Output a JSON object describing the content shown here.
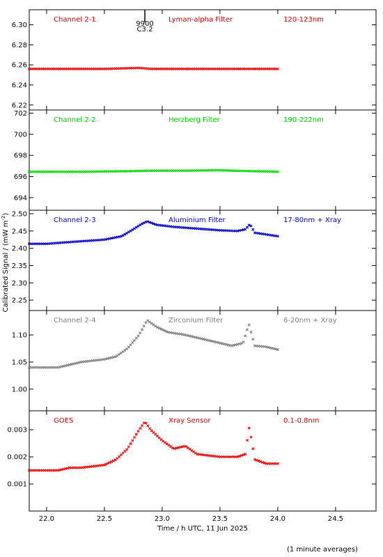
{
  "chart_data": {
    "type": "scatter",
    "xlabel": "Time / h UTC, 11 Jun 2025",
    "ylabel": "Calibrated Signal / (mW m",
    "ylabel_sup": "-2",
    "ylabel_close": ")",
    "footnote": "(1 minute averages)",
    "xlim": [
      21.85,
      24.85
    ],
    "xticks": [
      22.0,
      22.5,
      23.0,
      23.5,
      24.0,
      24.5
    ],
    "xtick_labels": [
      "22.0",
      "22.5",
      "23.0",
      "23.5",
      "24.0",
      "24.5"
    ],
    "marker_label_top": "9900",
    "marker_label_bottom": "C3.2",
    "marker_x": 22.85,
    "panels": [
      {
        "channel": "Channel 2-1",
        "filter": "Lyman-alpha Filter",
        "band": "120-123nm",
        "color": "#ff0000",
        "label_color": "#cc0000",
        "ylim": [
          6.215,
          6.315
        ],
        "yticks": [
          6.22,
          6.24,
          6.26,
          6.28,
          6.3
        ],
        "ytick_labels": [
          "6.22",
          "6.24",
          "6.26",
          "6.28",
          "6.30"
        ],
        "series": [
          {
            "x": [
              21.85,
              22.5,
              22.8,
              22.9,
              23.2,
              23.6,
              24.0
            ],
            "y": [
              6.256,
              6.256,
              6.257,
              6.256,
              6.256,
              6.256,
              6.256
            ]
          }
        ]
      },
      {
        "channel": "Channel 2-2",
        "filter": "Herzberg Filter",
        "band": "190-222nm",
        "color": "#00dd00",
        "label_color": "#00cc00",
        "ylim": [
          692.8,
          702.3
        ],
        "yticks": [
          694,
          696,
          698,
          700,
          702
        ],
        "ytick_labels": [
          "694",
          "696",
          "698",
          "700",
          "702"
        ],
        "series": [
          {
            "x": [
              21.85,
              22.3,
              22.7,
              22.9,
              23.2,
              23.5,
              23.6,
              24.0
            ],
            "y": [
              696.45,
              696.45,
              696.5,
              696.55,
              696.55,
              696.6,
              696.55,
              696.45
            ]
          }
        ]
      },
      {
        "channel": "Channel 2-3",
        "filter": "Aluminium Filter",
        "band": "17-80nm + Xray",
        "color": "#0000cc",
        "label_color": "#0000cc",
        "ylim": [
          2.22,
          2.51
        ],
        "yticks": [
          2.25,
          2.3,
          2.35,
          2.4,
          2.45,
          2.5
        ],
        "ytick_labels": [
          "2.25",
          "2.30",
          "2.35",
          "2.40",
          "2.45",
          "2.50"
        ],
        "series": [
          {
            "x": [
              21.85,
              22.0,
              22.2,
              22.5,
              22.65,
              22.75,
              22.82,
              22.87,
              22.95,
              23.1,
              23.3,
              23.5,
              23.65,
              23.72,
              23.76,
              23.8,
              23.9,
              24.0
            ],
            "y": [
              2.413,
              2.413,
              2.418,
              2.425,
              2.435,
              2.455,
              2.47,
              2.478,
              2.468,
              2.462,
              2.457,
              2.452,
              2.45,
              2.455,
              2.47,
              2.445,
              2.44,
              2.435
            ]
          }
        ]
      },
      {
        "channel": "Channel 2-4",
        "filter": "Zirconium Filter",
        "band": "6-20nm + Xray",
        "color": "#808080",
        "label_color": "#808080",
        "ylim": [
          0.96,
          1.145
        ],
        "yticks": [
          1.0,
          1.05,
          1.1
        ],
        "ytick_labels": [
          "1.00",
          "1.05",
          "1.10"
        ],
        "series": [
          {
            "x": [
              21.85,
              22.1,
              22.3,
              22.5,
              22.6,
              22.7,
              22.8,
              22.87,
              22.95,
              23.05,
              23.2,
              23.4,
              23.6,
              23.7,
              23.75,
              23.8,
              23.9,
              24.0
            ],
            "y": [
              1.04,
              1.04,
              1.05,
              1.055,
              1.06,
              1.075,
              1.1,
              1.127,
              1.115,
              1.105,
              1.1,
              1.09,
              1.08,
              1.085,
              1.12,
              1.08,
              1.078,
              1.073
            ]
          }
        ]
      },
      {
        "channel": "GOES",
        "filter": "Xray Sensor",
        "band": "0.1-0.8nm",
        "color": "#ff0000",
        "label_color": "#cc0000",
        "ylim": [
          0.0,
          0.0037
        ],
        "yticks": [
          0.001,
          0.002,
          0.003
        ],
        "ytick_labels": [
          "0.001",
          "0.002",
          "0.003"
        ],
        "series": [
          {
            "x": [
              21.85,
              22.1,
              22.2,
              22.3,
              22.5,
              22.6,
              22.7,
              22.8,
              22.85,
              22.9,
              23.0,
              23.1,
              23.2,
              23.3,
              23.5,
              23.65,
              23.72,
              23.75,
              23.77,
              23.8,
              23.9,
              24.0
            ],
            "y": [
              0.0015,
              0.0015,
              0.0016,
              0.0016,
              0.0017,
              0.0019,
              0.0023,
              0.003,
              0.0033,
              0.003,
              0.0026,
              0.0023,
              0.0024,
              0.0021,
              0.002,
              0.002,
              0.0021,
              0.0031,
              0.0027,
              0.0019,
              0.00175,
              0.00175
            ]
          }
        ]
      }
    ]
  }
}
